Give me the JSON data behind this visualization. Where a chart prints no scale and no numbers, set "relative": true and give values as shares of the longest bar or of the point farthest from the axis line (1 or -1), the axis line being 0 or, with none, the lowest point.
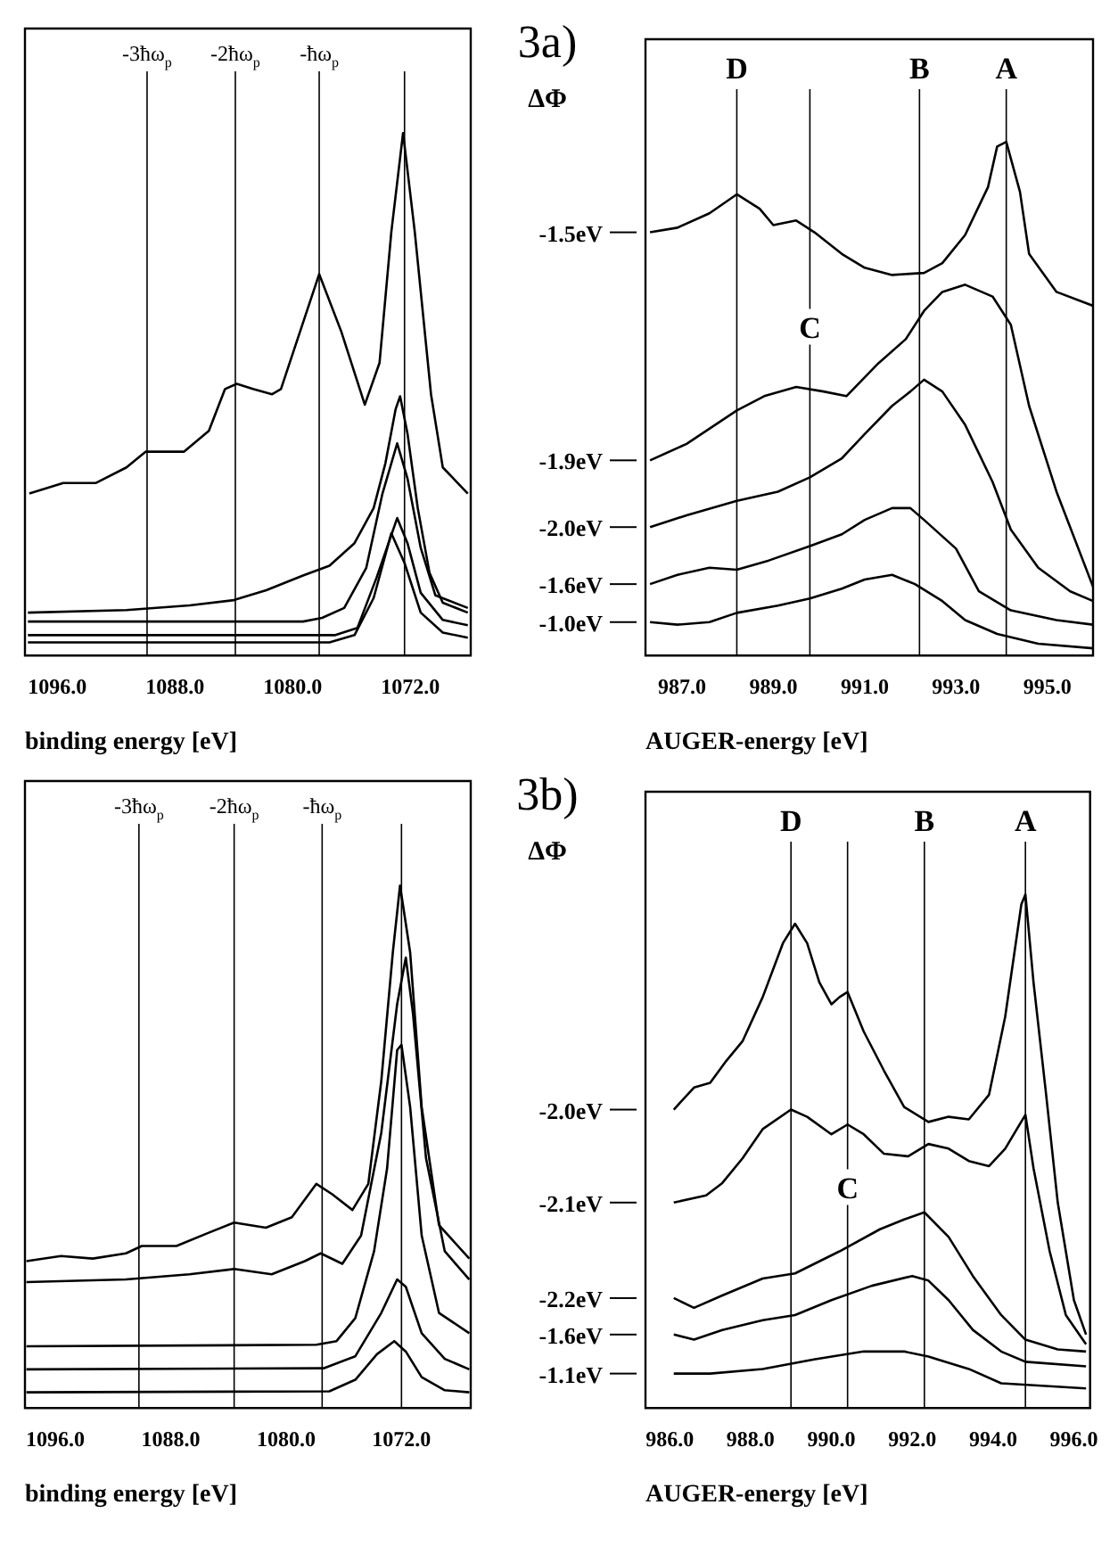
{
  "chart_data": [
    {
      "type": "line",
      "relative": true,
      "xlabel": "binding energy [eV]",
      "xlim": [
        1098.2,
        1067.9
      ],
      "xticks": [
        {
          "value": 1096,
          "label": "1096.0"
        },
        {
          "value": 1088,
          "label": "1088.0"
        },
        {
          "value": 1080,
          "label": "1080.0"
        },
        {
          "value": 1072,
          "label": "1072.0"
        }
      ],
      "tick_labels": "x",
      "ref_lines": [
        {
          "axis": "x",
          "value": 1089.9,
          "label": "-3ħω$_{p}$"
        },
        {
          "axis": "x",
          "value": 1083.9,
          "label": "-2ħω$_{p}$"
        },
        {
          "axis": "x",
          "value": 1078.2,
          "label": "-ħω$_{p}$"
        },
        {
          "axis": "x",
          "value": 1072.4,
          "label": null
        }
      ],
      "series": [
        {
          "color": "#000000",
          "x": [
            1097.9,
            1095.6,
            1093.4,
            1091.3,
            1090.0,
            1087.4,
            1085.7,
            1084.6,
            1083.8,
            1082.7,
            1081.4,
            1080.8,
            1079.5,
            1078.2,
            1076.7,
            1075.1,
            1074.1,
            1073.3,
            1072.5,
            1071.7,
            1070.6,
            1069.8,
            1068.1
          ],
          "values": [
            0.31,
            0.33,
            0.33,
            0.36,
            0.39,
            0.39,
            0.43,
            0.51,
            0.52,
            0.51,
            0.5,
            0.51,
            0.62,
            0.73,
            0.62,
            0.48,
            0.56,
            0.81,
            1.0,
            0.81,
            0.5,
            0.36,
            0.31
          ]
        },
        {
          "color": "#000000",
          "x": [
            1098.0,
            1091.3,
            1087.0,
            1084.0,
            1081.8,
            1079.3,
            1077.5,
            1075.8,
            1074.5,
            1073.7,
            1073.0,
            1072.7,
            1072.2,
            1071.5,
            1070.7,
            1069.8,
            1068.1
          ],
          "values": [
            0.082,
            0.087,
            0.096,
            0.106,
            0.125,
            0.153,
            0.172,
            0.215,
            0.282,
            0.368,
            0.472,
            0.496,
            0.425,
            0.282,
            0.158,
            0.101,
            0.082
          ]
        },
        {
          "color": "#000000",
          "x": [
            1098.0,
            1079.3,
            1078.0,
            1076.5,
            1075.0,
            1073.9,
            1072.9,
            1072.2,
            1071.3,
            1070.3,
            1068.1
          ],
          "values": [
            0.065,
            0.065,
            0.072,
            0.091,
            0.168,
            0.31,
            0.406,
            0.339,
            0.206,
            0.115,
            0.091
          ]
        },
        {
          "color": "#000000",
          "x": [
            1098.0,
            1077.1,
            1075.6,
            1074.3,
            1072.9,
            1072.2,
            1071.3,
            1069.8,
            1068.1
          ],
          "values": [
            0.039,
            0.039,
            0.053,
            0.149,
            0.263,
            0.215,
            0.12,
            0.068,
            0.058
          ]
        },
        {
          "color": "#000000",
          "x": [
            1098.0,
            1077.5,
            1075.8,
            1074.5,
            1073.3,
            1072.4,
            1071.3,
            1069.8,
            1068.1
          ],
          "values": [
            0.025,
            0.025,
            0.039,
            0.11,
            0.234,
            0.177,
            0.082,
            0.044,
            0.034
          ]
        }
      ]
    },
    {
      "type": "line",
      "relative": true,
      "legend": "left",
      "title": "3a)",
      "legend_title": "ΔΦ",
      "xlabel": "AUGER-energy [eV]",
      "xlim": [
        986.2,
        996.0
      ],
      "xticks": [
        {
          "value": 987,
          "label": "987.0"
        },
        {
          "value": 989,
          "label": "989.0"
        },
        {
          "value": 991,
          "label": "991.0"
        },
        {
          "value": 993,
          "label": "993.0"
        },
        {
          "value": 995,
          "label": "995.0"
        }
      ],
      "tick_labels": "x",
      "ref_lines": [
        {
          "axis": "x",
          "value": 988.2,
          "label": "D"
        },
        {
          "axis": "x",
          "value": 989.8,
          "label": null
        },
        {
          "axis": "x",
          "value": 992.2,
          "label": "B"
        },
        {
          "axis": "x",
          "value": 994.1,
          "label": "A"
        }
      ],
      "annotations": [
        {
          "text": "C",
          "x": 989.8,
          "y": 0.64
        }
      ],
      "series": [
        {
          "name": "-1.5eV",
          "color": "#000000",
          "x": [
            986.3,
            986.9,
            987.6,
            988.2,
            988.7,
            989.0,
            989.5,
            989.9,
            990.5,
            991.0,
            991.6,
            992.3,
            992.7,
            993.2,
            993.7,
            993.9,
            994.1,
            994.4,
            994.6,
            995.2,
            996.0
          ],
          "values": [
            0.824,
            0.833,
            0.861,
            0.898,
            0.87,
            0.838,
            0.847,
            0.824,
            0.782,
            0.755,
            0.741,
            0.745,
            0.764,
            0.819,
            0.912,
            0.991,
            1.0,
            0.903,
            0.782,
            0.708,
            0.681
          ]
        },
        {
          "name": "-1.9eV",
          "color": "#000000",
          "x": [
            986.3,
            987.1,
            988.2,
            988.8,
            989.5,
            990.1,
            990.6,
            991.3,
            991.9,
            992.3,
            992.7,
            993.2,
            993.8,
            994.2,
            994.6,
            995.2,
            996.0
          ],
          "values": [
            0.38,
            0.412,
            0.477,
            0.505,
            0.523,
            0.514,
            0.505,
            0.569,
            0.616,
            0.671,
            0.708,
            0.722,
            0.699,
            0.644,
            0.486,
            0.319,
            0.134
          ]
        },
        {
          "name": "-2.0eV",
          "color": "#000000",
          "x": [
            986.3,
            987.1,
            988.2,
            989.1,
            989.8,
            990.5,
            991.0,
            991.6,
            992.0,
            992.3,
            992.7,
            993.2,
            993.8,
            994.2,
            994.8,
            995.5,
            996.0
          ],
          "values": [
            0.25,
            0.273,
            0.301,
            0.319,
            0.347,
            0.384,
            0.431,
            0.486,
            0.514,
            0.537,
            0.514,
            0.449,
            0.338,
            0.245,
            0.171,
            0.125,
            0.106
          ]
        },
        {
          "name": "-1.6eV",
          "color": "#000000",
          "x": [
            986.3,
            986.9,
            987.6,
            988.2,
            988.9,
            989.8,
            990.5,
            991.0,
            991.6,
            992.0,
            992.3,
            993.0,
            993.5,
            994.2,
            995.2,
            996.0
          ],
          "values": [
            0.139,
            0.157,
            0.171,
            0.167,
            0.185,
            0.213,
            0.236,
            0.264,
            0.287,
            0.287,
            0.264,
            0.208,
            0.125,
            0.088,
            0.069,
            0.06
          ]
        },
        {
          "name": "-1.0eV",
          "color": "#000000",
          "x": [
            986.3,
            986.9,
            987.6,
            988.2,
            989.1,
            989.8,
            990.5,
            991.0,
            991.6,
            992.1,
            992.7,
            993.2,
            993.9,
            994.8,
            996.0
          ],
          "values": [
            0.065,
            0.06,
            0.065,
            0.083,
            0.097,
            0.111,
            0.13,
            0.148,
            0.157,
            0.139,
            0.106,
            0.069,
            0.042,
            0.023,
            0.014
          ]
        }
      ]
    },
    {
      "type": "line",
      "relative": true,
      "xlabel": "binding energy [eV]",
      "xlim": [
        1098.1,
        1067.2
      ],
      "xticks": [
        {
          "value": 1096,
          "label": "1096.0"
        },
        {
          "value": 1088,
          "label": "1088.0"
        },
        {
          "value": 1080,
          "label": "1080.0"
        },
        {
          "value": 1072,
          "label": "1072.0"
        }
      ],
      "tick_labels": "x",
      "ref_lines": [
        {
          "axis": "x",
          "value": 1090.2,
          "label": "-3ħω$_{p}$"
        },
        {
          "axis": "x",
          "value": 1083.6,
          "label": "-2ħω$_{p}$"
        },
        {
          "axis": "x",
          "value": 1077.5,
          "label": "-ħω$_{p}$"
        },
        {
          "axis": "x",
          "value": 1072.0,
          "label": null
        }
      ],
      "series": [
        {
          "color": "#000000",
          "x": [
            1098.0,
            1095.6,
            1093.4,
            1091.1,
            1090.0,
            1087.6,
            1085.4,
            1083.6,
            1081.4,
            1079.6,
            1077.9,
            1076.8,
            1075.4,
            1074.3,
            1073.4,
            1072.6,
            1072.1,
            1071.4,
            1070.6,
            1069.4,
            1067.3
          ],
          "values": [
            0.281,
            0.291,
            0.286,
            0.296,
            0.31,
            0.31,
            0.335,
            0.355,
            0.345,
            0.365,
            0.429,
            0.409,
            0.379,
            0.429,
            0.626,
            0.872,
            1.0,
            0.872,
            0.576,
            0.35,
            0.286
          ]
        },
        {
          "color": "#000000",
          "x": [
            1098.0,
            1091.1,
            1086.7,
            1083.6,
            1081.0,
            1078.7,
            1077.6,
            1076.1,
            1074.8,
            1073.4,
            1072.3,
            1071.7,
            1071.2,
            1070.3,
            1069.0,
            1067.3
          ],
          "values": [
            0.241,
            0.246,
            0.256,
            0.266,
            0.256,
            0.281,
            0.296,
            0.276,
            0.33,
            0.527,
            0.773,
            0.862,
            0.754,
            0.478,
            0.3,
            0.246
          ]
        },
        {
          "color": "#000000",
          "x": [
            1098.0,
            1077.9,
            1076.5,
            1075.2,
            1073.9,
            1073.0,
            1072.3,
            1072.0,
            1071.4,
            1070.6,
            1069.4,
            1067.3
          ],
          "values": [
            0.118,
            0.121,
            0.128,
            0.172,
            0.3,
            0.458,
            0.685,
            0.695,
            0.576,
            0.33,
            0.182,
            0.143
          ]
        },
        {
          "color": "#000000",
          "x": [
            1098.0,
            1077.4,
            1075.2,
            1073.4,
            1072.3,
            1071.7,
            1070.6,
            1069.0,
            1067.3
          ],
          "values": [
            0.074,
            0.076,
            0.099,
            0.182,
            0.246,
            0.232,
            0.143,
            0.094,
            0.074
          ]
        },
        {
          "color": "#000000",
          "x": [
            1098.0,
            1077.0,
            1075.2,
            1073.7,
            1072.5,
            1071.7,
            1070.6,
            1069.0,
            1067.3
          ],
          "values": [
            0.03,
            0.032,
            0.054,
            0.103,
            0.128,
            0.108,
            0.059,
            0.034,
            0.03
          ]
        }
      ]
    },
    {
      "type": "line",
      "relative": true,
      "legend": "left",
      "title": "3b)",
      "legend_title": "ΔΦ",
      "xlabel": "AUGER-energy [eV]",
      "xlim": [
        985.4,
        996.4
      ],
      "xticks": [
        {
          "value": 986,
          "label": "986.0"
        },
        {
          "value": 988,
          "label": "988.0"
        },
        {
          "value": 990,
          "label": "990.0"
        },
        {
          "value": 992,
          "label": "992.0"
        },
        {
          "value": 994,
          "label": "994.0"
        },
        {
          "value": 996,
          "label": "996.0"
        }
      ],
      "tick_labels": "x",
      "ref_lines": [
        {
          "axis": "x",
          "value": 989.0,
          "label": "D"
        },
        {
          "axis": "x",
          "value": 990.4,
          "label": null
        },
        {
          "axis": "x",
          "value": 992.3,
          "label": "B"
        },
        {
          "axis": "x",
          "value": 994.8,
          "label": "A"
        }
      ],
      "annotations": [
        {
          "text": "C",
          "x": 990.4,
          "y": 0.43
        }
      ],
      "series": [
        {
          "name": "-2.0eV",
          "color": "#000000",
          "x": [
            986.1,
            986.6,
            987.0,
            987.4,
            987.8,
            988.3,
            988.8,
            989.1,
            989.4,
            989.7,
            990.0,
            990.2,
            990.4,
            990.8,
            991.3,
            991.8,
            992.4,
            992.9,
            993.4,
            993.9,
            994.3,
            994.7,
            994.8,
            995.0,
            995.3,
            995.6,
            996.0,
            996.3
          ],
          "values": [
            0.581,
            0.624,
            0.633,
            0.676,
            0.714,
            0.8,
            0.905,
            0.943,
            0.905,
            0.829,
            0.786,
            0.8,
            0.81,
            0.733,
            0.657,
            0.586,
            0.557,
            0.567,
            0.562,
            0.61,
            0.762,
            0.981,
            1.0,
            0.829,
            0.619,
            0.4,
            0.21,
            0.143
          ]
        },
        {
          "name": "-2.1eV",
          "color": "#000000",
          "x": [
            986.1,
            986.9,
            987.3,
            987.8,
            988.3,
            989.0,
            989.4,
            990.0,
            990.4,
            990.8,
            991.3,
            991.9,
            992.4,
            992.9,
            993.4,
            993.9,
            994.3,
            994.8,
            995.0,
            995.4,
            995.8,
            996.3
          ],
          "values": [
            0.4,
            0.414,
            0.438,
            0.486,
            0.543,
            0.581,
            0.567,
            0.533,
            0.552,
            0.533,
            0.495,
            0.49,
            0.514,
            0.505,
            0.481,
            0.471,
            0.505,
            0.571,
            0.467,
            0.305,
            0.181,
            0.124
          ]
        },
        {
          "name": "-2.2eV",
          "color": "#000000",
          "x": [
            986.1,
            986.6,
            987.3,
            988.3,
            989.1,
            990.2,
            991.2,
            991.8,
            992.3,
            992.9,
            993.5,
            994.2,
            994.8,
            995.6,
            996.3
          ],
          "values": [
            0.214,
            0.195,
            0.219,
            0.252,
            0.262,
            0.305,
            0.348,
            0.367,
            0.381,
            0.333,
            0.257,
            0.181,
            0.133,
            0.114,
            0.11
          ]
        },
        {
          "name": "-1.6eV",
          "color": "#000000",
          "x": [
            986.1,
            986.6,
            987.3,
            988.3,
            989.1,
            990.0,
            991.0,
            992.0,
            992.4,
            992.9,
            993.5,
            994.2,
            994.8,
            996.3
          ],
          "values": [
            0.143,
            0.133,
            0.152,
            0.171,
            0.181,
            0.21,
            0.238,
            0.257,
            0.248,
            0.21,
            0.152,
            0.11,
            0.09,
            0.081
          ]
        },
        {
          "name": "-1.1eV",
          "color": "#000000",
          "x": [
            986.1,
            987.0,
            988.3,
            989.6,
            990.8,
            991.8,
            992.4,
            993.4,
            994.2,
            996.3
          ],
          "values": [
            0.067,
            0.067,
            0.076,
            0.095,
            0.11,
            0.11,
            0.1,
            0.076,
            0.048,
            0.038
          ]
        }
      ]
    }
  ]
}
